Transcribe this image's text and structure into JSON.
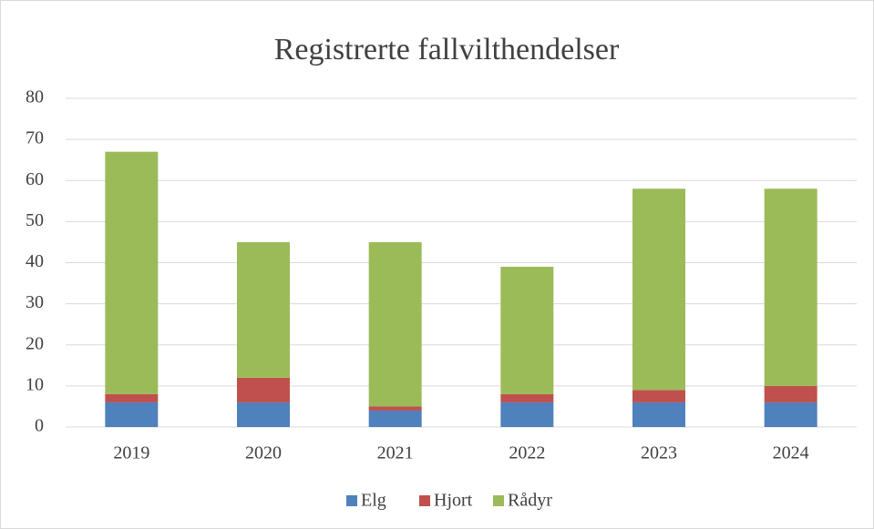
{
  "chart_data": {
    "type": "stacked_bar",
    "title": "Registrerte fallvilthendelser",
    "categories": [
      "2019",
      "2020",
      "2021",
      "2022",
      "2023",
      "2024"
    ],
    "series": [
      {
        "name": "Elg",
        "color": "#4f81bd",
        "values": [
          6,
          6,
          4,
          6,
          6,
          6
        ]
      },
      {
        "name": "Hjort",
        "color": "#c0504d",
        "values": [
          2,
          6,
          1,
          2,
          3,
          4
        ]
      },
      {
        "name": "Rådyr",
        "color": "#9bbb59",
        "values": [
          59,
          33,
          40,
          31,
          49,
          48
        ]
      }
    ],
    "ylim": [
      0,
      80
    ],
    "yticks": [
      0,
      10,
      20,
      30,
      40,
      50,
      60,
      70,
      80
    ],
    "grid": true,
    "legend": "bottom"
  }
}
